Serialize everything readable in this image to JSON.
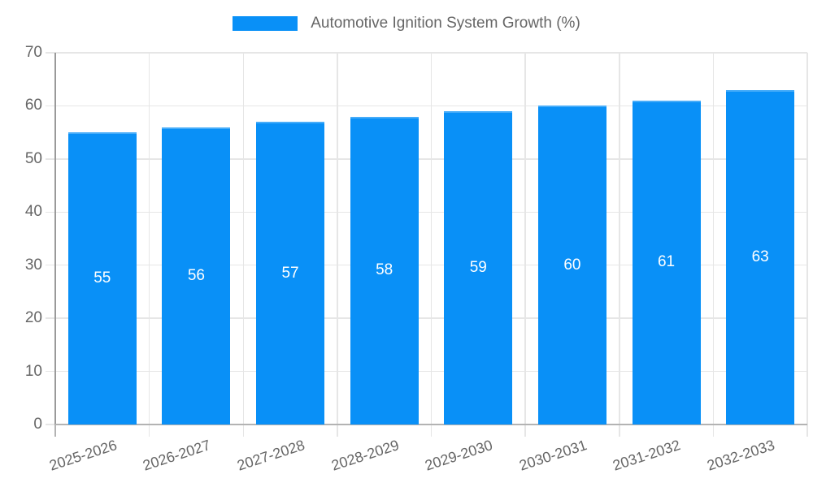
{
  "legend": {
    "label": "Automotive Ignition System Growth (%)",
    "swatch_color": "#0990f7"
  },
  "chart_data": {
    "type": "bar",
    "title": "Automotive Ignition System Growth (%)",
    "categories": [
      "2025-2026",
      "2026-2027",
      "2027-2028",
      "2028-2029",
      "2029-2030",
      "2030-2031",
      "2031-2032",
      "2032-2033"
    ],
    "values": [
      55,
      56,
      57,
      58,
      59,
      60,
      61,
      63
    ],
    "value_labels": [
      "55",
      "56",
      "57",
      "58",
      "59",
      "60",
      "61",
      "63"
    ],
    "xlabel": "",
    "ylabel": "",
    "ylim": [
      0,
      70
    ],
    "yticks": [
      0,
      10,
      20,
      30,
      40,
      50,
      60,
      70
    ],
    "grid": true,
    "legend_position": "top-center",
    "bar_color": "#0990f7",
    "value_label_color": "#ffffff",
    "axis_text_color": "#666666",
    "gridline_color": "#e6e6e6",
    "y_axis_line_color": "#9a9a9a",
    "x_axis_line_color": "#b3b3b3",
    "x_tick_label_rotation_deg": -18
  }
}
